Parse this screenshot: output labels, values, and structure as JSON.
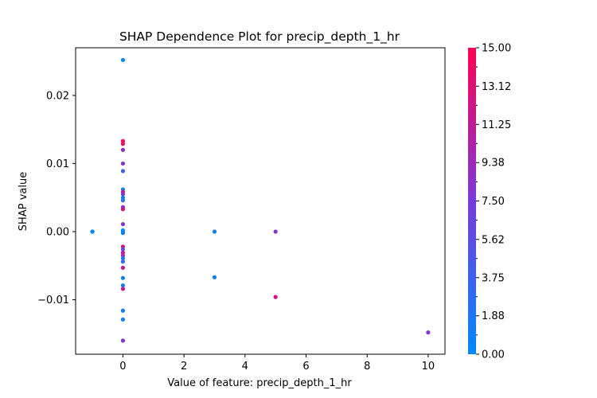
{
  "chart_data": {
    "type": "scatter",
    "title": "SHAP Dependence Plot for precip_depth_1_hr",
    "xlabel": "Value of feature: precip_depth_1_hr",
    "ylabel": "SHAP value",
    "xlim": [
      -1.55,
      10.55
    ],
    "ylim": [
      -0.018,
      0.027
    ],
    "x_ticks": [
      0,
      2,
      4,
      6,
      8,
      10
    ],
    "x_tick_labels": [
      "0",
      "2",
      "4",
      "6",
      "8",
      "10"
    ],
    "y_ticks": [
      -0.01,
      0.0,
      0.01,
      0.02
    ],
    "y_tick_labels": [
      "−0.01",
      "0.00",
      "0.01",
      "0.02"
    ],
    "grid": false,
    "colorbar": {
      "min": 0.0,
      "max": 15.0,
      "tick_values": [
        0.0,
        1.88,
        3.75,
        5.62,
        7.5,
        9.38,
        11.25,
        13.12,
        15.0
      ],
      "tick_labels": [
        "0.00",
        "1.88",
        "3.75",
        "5.62",
        "7.50",
        "9.38",
        "11.25",
        "13.12",
        "15.00"
      ],
      "colormap": [
        "#008afb",
        "#7a3ad8",
        "#ff0052"
      ]
    },
    "points": [
      {
        "x": 0,
        "y": 0.0252,
        "c": 0
      },
      {
        "x": 0,
        "y": 0.0133,
        "c": 15
      },
      {
        "x": 0,
        "y": 0.0129,
        "c": 14.5
      },
      {
        "x": 0,
        "y": 0.012,
        "c": 9
      },
      {
        "x": 0,
        "y": 0.01,
        "c": 8
      },
      {
        "x": 0,
        "y": 0.0089,
        "c": 4
      },
      {
        "x": 0,
        "y": 0.0062,
        "c": 1
      },
      {
        "x": 0,
        "y": 0.0058,
        "c": 12
      },
      {
        "x": 0,
        "y": 0.0055,
        "c": 8
      },
      {
        "x": 0,
        "y": 0.005,
        "c": 1
      },
      {
        "x": 0,
        "y": 0.0046,
        "c": 2
      },
      {
        "x": 0,
        "y": 0.0036,
        "c": 8
      },
      {
        "x": 0,
        "y": 0.0033,
        "c": 12
      },
      {
        "x": 0,
        "y": 0.0011,
        "c": 8
      },
      {
        "x": -1,
        "y": 0.0,
        "c": 0.3
      },
      {
        "x": -1,
        "y": 0.0,
        "c": 0.3
      },
      {
        "x": 0,
        "y": 0.0002,
        "c": 0
      },
      {
        "x": 0,
        "y": 0.0,
        "c": 0
      },
      {
        "x": 0,
        "y": -0.0002,
        "c": 1
      },
      {
        "x": 0,
        "y": -0.0022,
        "c": 13
      },
      {
        "x": 0,
        "y": -0.0026,
        "c": 6
      },
      {
        "x": 0,
        "y": -0.0031,
        "c": 12
      },
      {
        "x": 0,
        "y": -0.0035,
        "c": 10
      },
      {
        "x": 0,
        "y": -0.0039,
        "c": 2
      },
      {
        "x": 0,
        "y": -0.0044,
        "c": 3
      },
      {
        "x": 0,
        "y": -0.0053,
        "c": 12
      },
      {
        "x": 0,
        "y": -0.0068,
        "c": 1
      },
      {
        "x": 0,
        "y": -0.0079,
        "c": 1
      },
      {
        "x": 0,
        "y": -0.0084,
        "c": 12
      },
      {
        "x": 0,
        "y": -0.0116,
        "c": 1
      },
      {
        "x": 0,
        "y": -0.0129,
        "c": 1
      },
      {
        "x": 0,
        "y": -0.016,
        "c": 8
      },
      {
        "x": 3,
        "y": 0.0,
        "c": 1
      },
      {
        "x": 3,
        "y": -0.0067,
        "c": 1
      },
      {
        "x": 5,
        "y": 0.0,
        "c": 8
      },
      {
        "x": 5,
        "y": -0.0096,
        "c": 12
      },
      {
        "x": 10,
        "y": -0.0148,
        "c": 8
      }
    ]
  }
}
